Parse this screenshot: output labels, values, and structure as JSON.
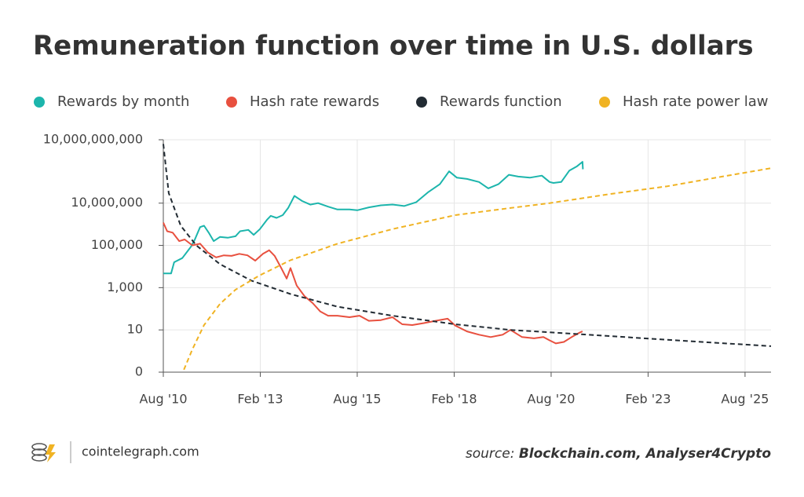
{
  "chart_data": {
    "type": "line",
    "title": "Remuneration function over time in U.S. dollars",
    "log_y": true,
    "grid": true,
    "xlim": [
      2010.58,
      2026.25
    ],
    "xticks": [
      {
        "value": 2010.58,
        "label": "Aug '10"
      },
      {
        "value": 2013.08,
        "label": "Feb '13"
      },
      {
        "value": 2015.58,
        "label": "Aug '15"
      },
      {
        "value": 2018.08,
        "label": "Feb '18"
      },
      {
        "value": 2020.58,
        "label": "Aug '20"
      },
      {
        "value": 2023.08,
        "label": "Feb '23"
      },
      {
        "value": 2025.58,
        "label": "Aug '25"
      }
    ],
    "ylim": [
      0.1,
      10000000000
    ],
    "yticks": [
      {
        "value": 0.1,
        "label": "0"
      },
      10,
      {
        "value": 1000,
        "label": "1,000"
      },
      {
        "value": 100000,
        "label": "100,000"
      },
      {
        "value": 10000000,
        "label": "10,000,000"
      },
      {
        "value": 10000000000,
        "label": "10,000,000,000"
      }
    ],
    "series": [
      {
        "name": "Rewards by month",
        "color": "#1cb5ac",
        "dashed": false,
        "x": [
          2010.58,
          2010.78,
          2010.86,
          2011.07,
          2011.29,
          2011.39,
          2011.53,
          2011.63,
          2011.75,
          2011.88,
          2012.04,
          2012.24,
          2012.44,
          2012.56,
          2012.77,
          2012.91,
          2013.07,
          2013.25,
          2013.35,
          2013.5,
          2013.66,
          2013.8,
          2013.96,
          2014.16,
          2014.37,
          2014.57,
          2014.83,
          2015.07,
          2015.38,
          2015.58,
          2015.88,
          2016.19,
          2016.49,
          2016.79,
          2017.1,
          2017.4,
          2017.71,
          2017.95,
          2018.15,
          2018.41,
          2018.72,
          2018.96,
          2019.22,
          2019.49,
          2019.73,
          2020.03,
          2020.34,
          2020.54,
          2020.64,
          2020.84,
          2021.05,
          2021.25,
          2021.39,
          2021.4
        ],
        "values": [
          4700,
          4700,
          16000,
          25000,
          85000,
          185000,
          740000,
          850000,
          400000,
          160000,
          250000,
          230000,
          270000,
          470000,
          540000,
          316000,
          590000,
          1600000,
          2500000,
          2000000,
          2700000,
          5900000,
          22000000,
          12600000,
          8500000,
          10000000,
          6800000,
          5000000,
          5000000,
          4600000,
          6300000,
          7900000,
          8600000,
          7300000,
          11000000,
          32000000,
          79000000,
          320000000,
          160000000,
          140000000,
          100000000,
          50000000,
          79000000,
          220000000,
          180000000,
          160000000,
          200000000,
          100000000,
          90000000,
          100000000,
          350000000,
          560000000,
          900000000,
          400000000
        ]
      },
      {
        "name": "Hash rate rewards",
        "color": "#e8503f",
        "dashed": false,
        "x": [
          2010.58,
          2010.68,
          2010.82,
          2010.99,
          2011.13,
          2011.33,
          2011.53,
          2011.73,
          2011.94,
          2012.14,
          2012.34,
          2012.54,
          2012.75,
          2012.95,
          2013.15,
          2013.31,
          2013.45,
          2013.62,
          2013.76,
          2013.86,
          2014.02,
          2014.22,
          2014.43,
          2014.63,
          2014.83,
          2015.07,
          2015.38,
          2015.64,
          2015.88,
          2016.19,
          2016.49,
          2016.74,
          2017.0,
          2017.3,
          2017.6,
          2017.91,
          2018.11,
          2018.41,
          2018.72,
          2019.02,
          2019.33,
          2019.53,
          2019.83,
          2020.14,
          2020.38,
          2020.54,
          2020.7,
          2020.91,
          2021.11,
          2021.31,
          2021.39
        ],
        "values": [
          1200000,
          470000,
          400000,
          160000,
          190000,
          100000,
          120000,
          46000,
          27000,
          34000,
          32000,
          40000,
          34000,
          19000,
          40000,
          59000,
          32000,
          8500,
          2700,
          8500,
          1260,
          400,
          186,
          74,
          47,
          47,
          40,
          47,
          27,
          29,
          40,
          18.5,
          17,
          21,
          27,
          34,
          16,
          8.5,
          5.9,
          4.6,
          5.9,
          10,
          4.6,
          4,
          4.6,
          3.2,
          2.3,
          2.7,
          4.6,
          7.4,
          8.5
        ]
      },
      {
        "name": "Rewards function",
        "color": "#222b33",
        "dashed": true,
        "x": [
          2010.58,
          2010.72,
          2011.03,
          2011.43,
          2012.04,
          2012.85,
          2013.86,
          2015.07,
          2016.49,
          2018.11,
          2019.53,
          2021.55,
          2023.58,
          2026.25
        ],
        "values": [
          6300000000,
          30000000,
          850000,
          100000,
          13000,
          2150,
          500,
          126,
          47,
          18.5,
          10,
          5.9,
          3.4,
          1.7
        ]
      },
      {
        "name": "Hash rate power law",
        "color": "#f0b323",
        "dashed": true,
        "x": [
          2011.11,
          2011.33,
          2011.63,
          2012.04,
          2012.44,
          2013.05,
          2013.86,
          2015.07,
          2016.49,
          2018.11,
          2019.53,
          2020.54,
          2022.16,
          2023.58,
          2024.99,
          2026.25
        ],
        "values": [
          0.13,
          1.2,
          17,
          170,
          800,
          3700,
          20000,
          120000,
          590000,
          2700000,
          5900000,
          10000000,
          28000000,
          63000000,
          180000000,
          450000000
        ]
      }
    ]
  },
  "footer": {
    "site": "cointelegraph.com",
    "source_label": "source:",
    "source_names": "Blockchain.com,  Analyser4Crypto"
  }
}
